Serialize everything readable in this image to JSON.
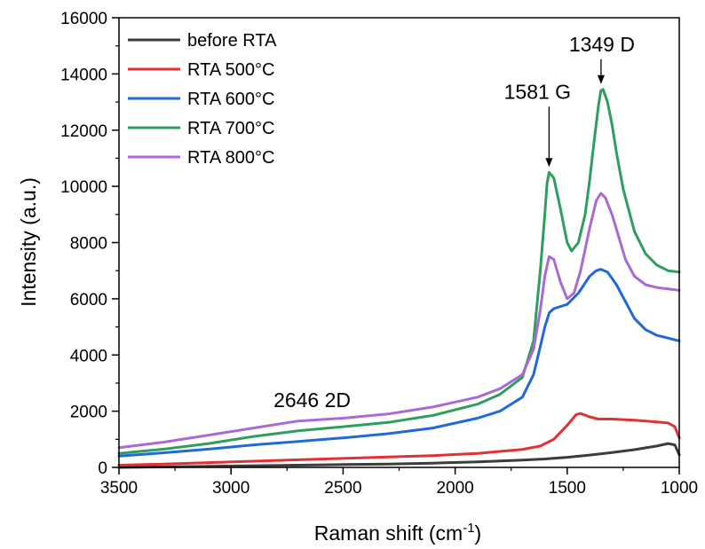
{
  "chart_data": {
    "type": "line",
    "xlabel": "Raman shift (cm",
    "xlabel_sup": "-1",
    "xlabel_end": ")",
    "ylabel": "Intensity (a.u.)",
    "xlim": [
      3500,
      1000
    ],
    "ylim": [
      0,
      16000
    ],
    "x_reversed": true,
    "x_ticks": [
      3500,
      3000,
      2500,
      2000,
      1500,
      1000
    ],
    "y_ticks": [
      0,
      2000,
      4000,
      6000,
      8000,
      10000,
      12000,
      14000,
      16000
    ],
    "grid": false,
    "legend_position": "top-left",
    "series": [
      {
        "name": "before RTA",
        "color": "#3c3c3c",
        "x": [
          3500,
          3300,
          3100,
          2900,
          2700,
          2500,
          2300,
          2100,
          1900,
          1700,
          1600,
          1500,
          1400,
          1300,
          1200,
          1100,
          1050,
          1020,
          1000
        ],
        "values": [
          0,
          20,
          40,
          60,
          80,
          100,
          120,
          150,
          200,
          260,
          300,
          360,
          440,
          530,
          630,
          760,
          850,
          800,
          450
        ]
      },
      {
        "name": "RTA 500°C",
        "color": "#e03232",
        "x": [
          3500,
          3300,
          3100,
          2900,
          2700,
          2500,
          2300,
          2100,
          1900,
          1700,
          1620,
          1560,
          1500,
          1460,
          1440,
          1400,
          1360,
          1300,
          1200,
          1100,
          1050,
          1020,
          1000
        ],
        "values": [
          80,
          120,
          170,
          220,
          270,
          320,
          370,
          420,
          500,
          640,
          760,
          1000,
          1500,
          1880,
          1920,
          1800,
          1720,
          1720,
          1680,
          1620,
          1580,
          1450,
          1050
        ]
      },
      {
        "name": "RTA 600°C",
        "color": "#1f6ad6",
        "x": [
          3500,
          3300,
          3100,
          2900,
          2700,
          2500,
          2300,
          2100,
          1900,
          1800,
          1700,
          1650,
          1620,
          1600,
          1580,
          1560,
          1500,
          1450,
          1400,
          1370,
          1350,
          1320,
          1280,
          1240,
          1200,
          1150,
          1100,
          1050,
          1000
        ],
        "values": [
          400,
          520,
          650,
          800,
          920,
          1050,
          1200,
          1400,
          1750,
          2000,
          2500,
          3300,
          4300,
          5000,
          5500,
          5650,
          5800,
          6200,
          6800,
          7000,
          7050,
          6950,
          6500,
          5900,
          5300,
          4900,
          4700,
          4600,
          4500
        ]
      },
      {
        "name": "RTA 700°C",
        "color": "#2e9e5e",
        "x": [
          3500,
          3300,
          3100,
          2900,
          2700,
          2500,
          2300,
          2100,
          1900,
          1800,
          1700,
          1650,
          1620,
          1600,
          1590,
          1581,
          1560,
          1530,
          1500,
          1480,
          1450,
          1420,
          1400,
          1380,
          1360,
          1350,
          1340,
          1320,
          1300,
          1280,
          1250,
          1200,
          1150,
          1100,
          1050,
          1000
        ],
        "values": [
          500,
          650,
          850,
          1100,
          1300,
          1450,
          1600,
          1850,
          2250,
          2600,
          3200,
          4500,
          7000,
          9000,
          10100,
          10500,
          10300,
          9200,
          8000,
          7700,
          8000,
          9000,
          10200,
          11600,
          12900,
          13400,
          13450,
          13000,
          12200,
          11200,
          9900,
          8400,
          7600,
          7200,
          7000,
          6950
        ]
      },
      {
        "name": "RTA 800°C",
        "color": "#a86ad6",
        "x": [
          3500,
          3300,
          3100,
          2900,
          2700,
          2500,
          2300,
          2100,
          1900,
          1800,
          1700,
          1650,
          1620,
          1600,
          1581,
          1560,
          1530,
          1500,
          1470,
          1440,
          1400,
          1370,
          1350,
          1330,
          1300,
          1270,
          1240,
          1200,
          1150,
          1100,
          1050,
          1000
        ],
        "values": [
          700,
          900,
          1150,
          1400,
          1650,
          1750,
          1900,
          2150,
          2500,
          2800,
          3300,
          4200,
          5600,
          6800,
          7500,
          7400,
          6600,
          6000,
          6200,
          7000,
          8500,
          9500,
          9750,
          9600,
          9000,
          8200,
          7400,
          6800,
          6500,
          6400,
          6350,
          6300
        ]
      }
    ],
    "annotations": [
      {
        "text": "1349 D",
        "x": 1349,
        "y": 13450,
        "arrow": true
      },
      {
        "text": "1581 G",
        "x": 1581,
        "y": 10500,
        "arrow": true
      },
      {
        "text": "2646 2D",
        "x": 2646,
        "y": 1950,
        "arrow": false
      }
    ]
  }
}
